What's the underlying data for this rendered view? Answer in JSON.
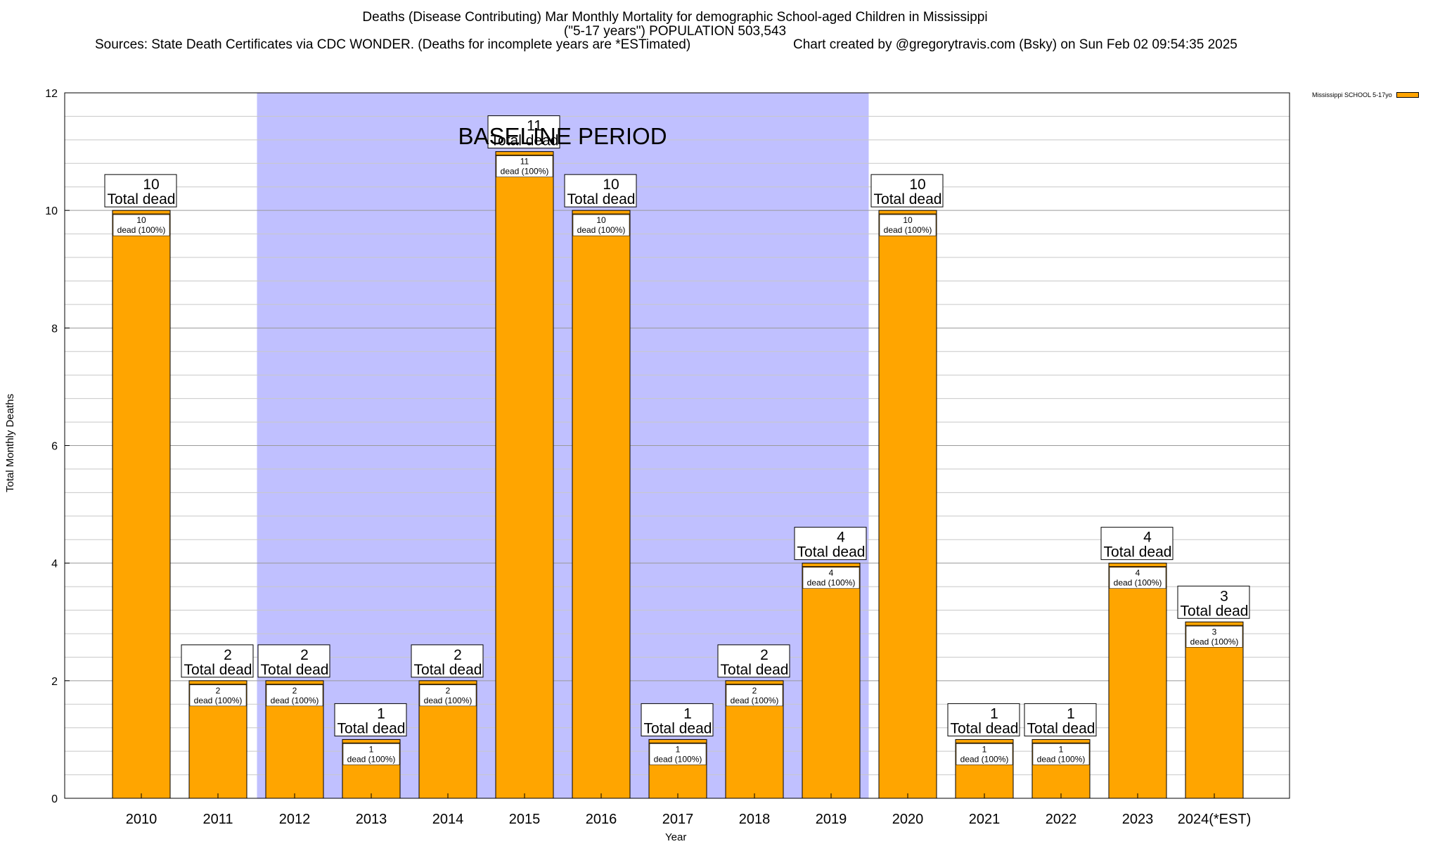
{
  "header": {
    "title_line1": "Deaths (Disease Contributing) Mar Monthly Mortality for demographic School-aged Children in Mississippi",
    "title_line2": "(\"5-17 years\") POPULATION 503,543",
    "sources": "Sources: State Death Certificates via CDC WONDER. (Deaths for incomplete years are *ESTimated)",
    "credit": "Chart created by @gregorytravis.com (Bsky) on Sun Feb 02 09:54:35 2025"
  },
  "chart_data": {
    "type": "bar",
    "xlabel": "Year",
    "ylabel": "Total Monthly Deaths",
    "ylim": [
      0,
      12
    ],
    "y_ticks": [
      0,
      2,
      4,
      6,
      8,
      10,
      12
    ],
    "grid": true,
    "legend_position": "top-right",
    "series": [
      {
        "name": "Mississippi SCHOOL 5-17yo",
        "color": "#ffa500",
        "values": [
          10,
          2,
          2,
          1,
          2,
          11,
          10,
          1,
          2,
          4,
          10,
          1,
          1,
          4,
          3
        ]
      }
    ],
    "categories": [
      "2010",
      "2011",
      "2012",
      "2013",
      "2014",
      "2015",
      "2016",
      "2017",
      "2018",
      "2019",
      "2020",
      "2021",
      "2022",
      "2023",
      "2024(*EST)"
    ],
    "total_label": "Total dead",
    "inner_labels": [
      "10",
      "2",
      "2",
      "1",
      "2",
      "11",
      "10",
      "1",
      "2",
      "4",
      "10",
      "1",
      "1",
      "4",
      "3"
    ],
    "inner_suffix": "dead (100%)",
    "baseline": {
      "label": "BASELINE PERIOD",
      "start_category": "2012",
      "end_category": "2019",
      "color": "#c0c0ff"
    }
  }
}
